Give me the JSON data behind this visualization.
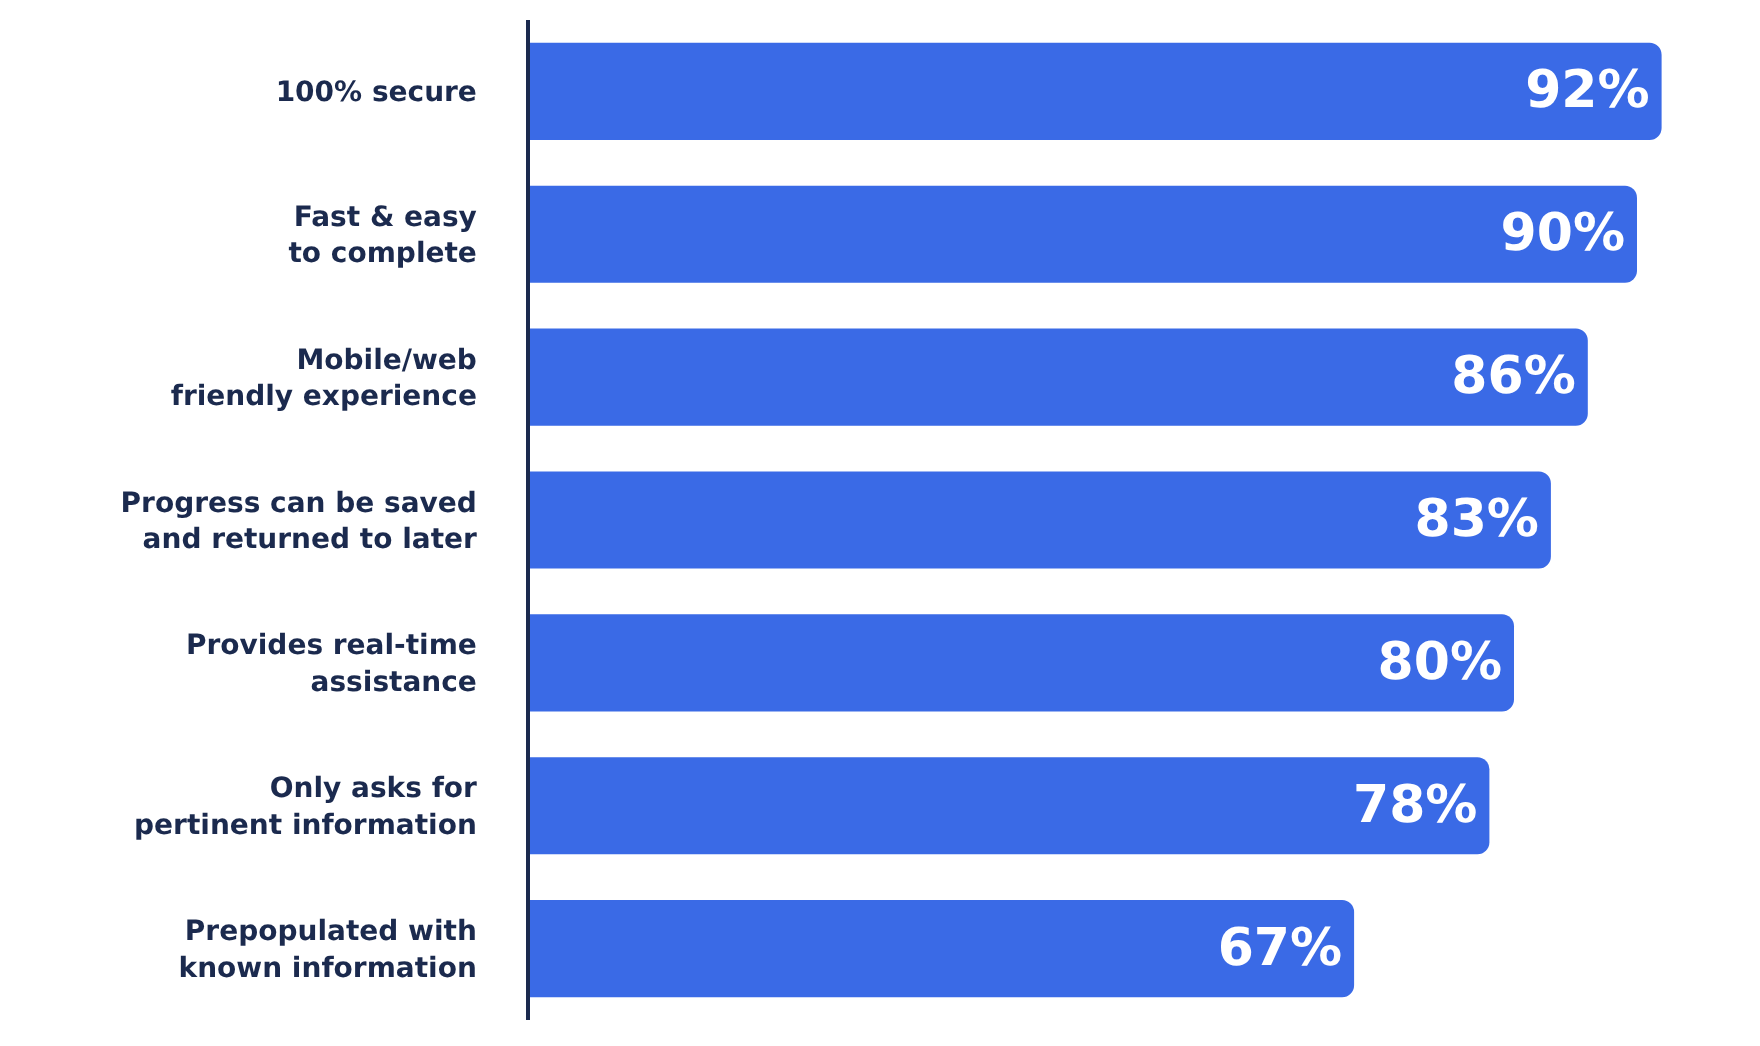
{
  "chart_data": {
    "type": "bar",
    "orientation": "horizontal",
    "categories": [
      "100% secure",
      "Fast & easy\nto complete",
      "Mobile/web\nfriendly experience",
      "Progress can be saved\nand returned to later",
      "Provides real-time\nassistance",
      "Only asks for\npertinent information",
      "Prepopulated with\nknown information"
    ],
    "values": [
      92,
      90,
      86,
      83,
      80,
      78,
      67
    ],
    "value_labels": [
      "92%",
      "90%",
      "86%",
      "83%",
      "80%",
      "78%",
      "67%"
    ],
    "color": "#3a6ae6",
    "xlim": [
      0,
      100
    ],
    "tick_labels": "y",
    "legend": false
  }
}
